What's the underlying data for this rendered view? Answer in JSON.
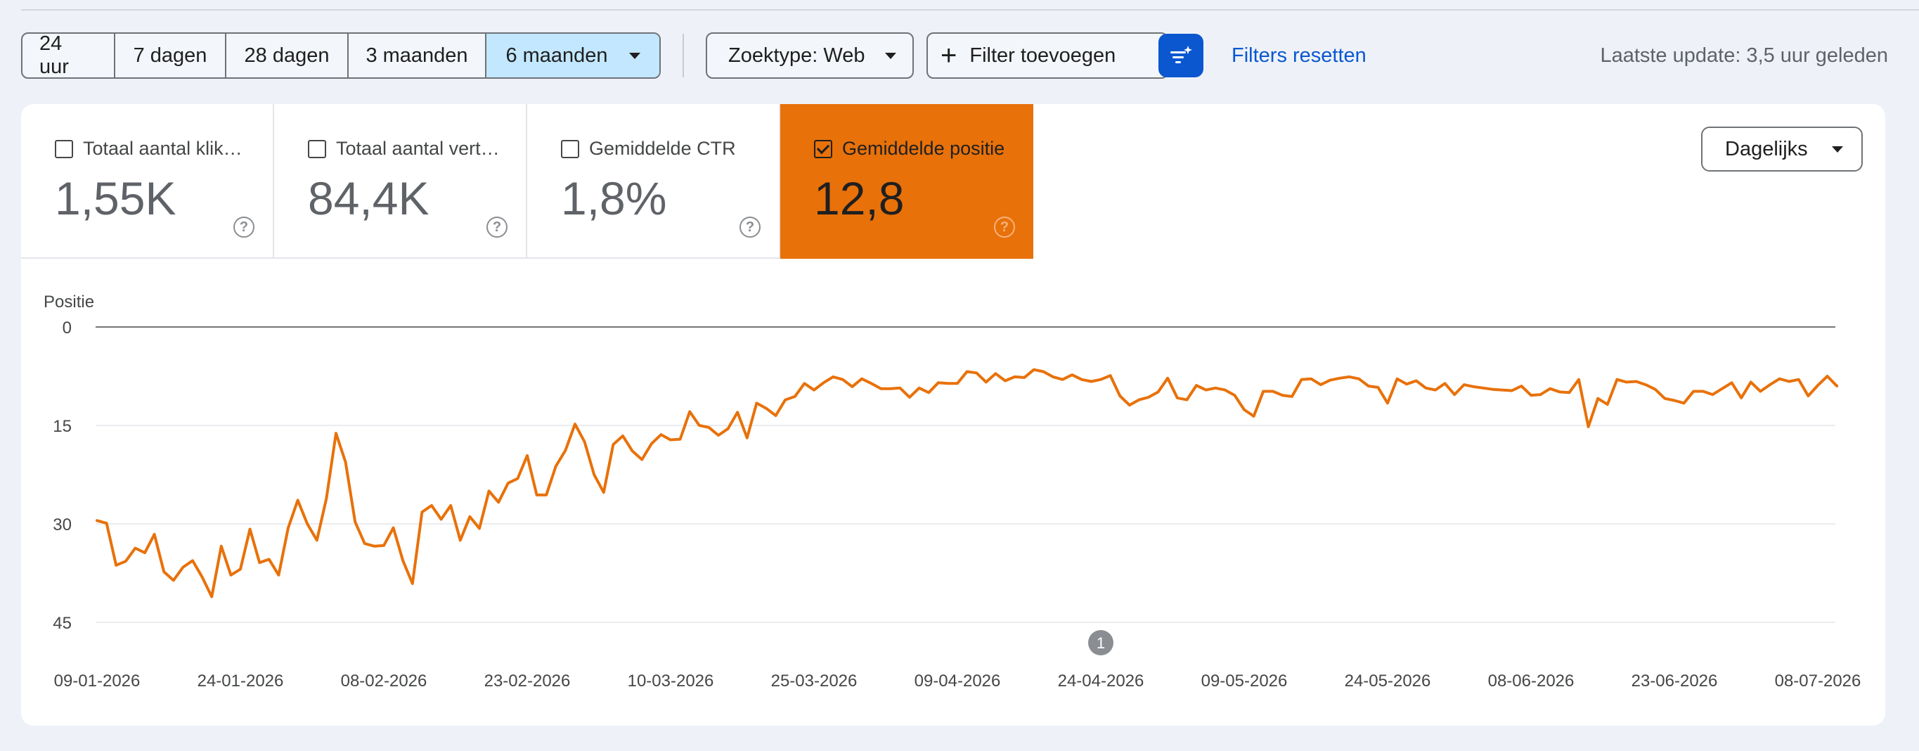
{
  "toolbar": {
    "ranges": [
      {
        "label": "24 uur",
        "active": false
      },
      {
        "label": "7 dagen",
        "active": false
      },
      {
        "label": "28 dagen",
        "active": false
      },
      {
        "label": "3 maanden",
        "active": false
      },
      {
        "label": "6 maanden",
        "active": true
      }
    ],
    "search_type": "Zoektype: Web",
    "add_filter": "Filter toevoegen",
    "reset_filters": "Filters resetten",
    "last_update": "Laatste update: 3,5 uur geleden"
  },
  "metrics": [
    {
      "label": "Totaal aantal klik…",
      "value": "1,55K",
      "checked": false
    },
    {
      "label": "Totaal aantal vert…",
      "value": "84,4K",
      "checked": false
    },
    {
      "label": "Gemiddelde CTR",
      "value": "1,8%",
      "checked": false
    },
    {
      "label": "Gemiddelde positie",
      "value": "12,8",
      "checked": true
    }
  ],
  "help_glyph": "?",
  "granularity": "Dagelijks",
  "colors": {
    "accent_orange": "#e8710a",
    "primary_blue": "#0b57d0",
    "selected_range_bg": "#c2e7ff"
  },
  "chart_data": {
    "type": "line",
    "title": "",
    "ylabel": "Positie",
    "xlabel": "",
    "y_reversed": true,
    "ylim": [
      0,
      45
    ],
    "yticks": [
      0,
      15,
      30,
      45
    ],
    "x_tick_labels": [
      "09-01-2026",
      "24-01-2026",
      "08-02-2026",
      "23-02-2026",
      "10-03-2026",
      "25-03-2026",
      "09-04-2026",
      "24-04-2026",
      "09-05-2026",
      "24-05-2026",
      "08-06-2026",
      "23-06-2026",
      "08-07-2026"
    ],
    "x_start": "2026-01-09",
    "annotations": [
      {
        "date": "2026-04-24",
        "label": "1"
      }
    ],
    "series": [
      {
        "color": "#e8710a",
        "values": [
          29.5,
          29.9,
          36.3,
          35.7,
          33.7,
          34.4,
          31.6,
          37.3,
          38.6,
          36.6,
          35.6,
          38.1,
          41.1,
          33.4,
          37.8,
          36.9,
          30.8,
          35.9,
          35.4,
          37.8,
          30.6,
          26.4,
          30.0,
          32.5,
          26.1,
          16.2,
          20.6,
          29.7,
          33.0,
          33.4,
          33.3,
          30.6,
          35.6,
          39.1,
          28.2,
          27.2,
          29.3,
          27.2,
          32.5,
          28.9,
          30.7,
          25.0,
          26.7,
          23.8,
          23.1,
          19.6,
          25.6,
          25.6,
          21.2,
          18.8,
          14.8,
          17.5,
          22.5,
          25.2,
          17.9,
          16.6,
          18.9,
          20.2,
          17.8,
          16.4,
          17.2,
          17.1,
          12.9,
          15.0,
          15.3,
          16.5,
          15.5,
          13.0,
          16.9,
          11.6,
          12.4,
          13.5,
          11.1,
          10.6,
          8.6,
          9.6,
          8.5,
          7.6,
          8.0,
          9.1,
          7.9,
          8.6,
          9.4,
          9.4,
          9.3,
          10.7,
          9.3,
          10.0,
          8.5,
          8.6,
          8.6,
          6.8,
          7.0,
          8.4,
          7.1,
          8.2,
          7.6,
          7.7,
          6.5,
          6.8,
          7.6,
          8.0,
          7.3,
          8.0,
          8.3,
          8.0,
          7.4,
          10.5,
          11.9,
          11.1,
          10.7,
          9.9,
          7.8,
          10.8,
          11.1,
          8.9,
          9.6,
          9.3,
          9.6,
          10.4,
          12.6,
          13.6,
          9.8,
          9.8,
          10.4,
          10.6,
          8.0,
          7.9,
          8.8,
          8.1,
          7.8,
          7.6,
          7.9,
          9.0,
          9.2,
          11.6,
          7.9,
          8.7,
          8.2,
          9.3,
          9.6,
          8.6,
          10.3,
          8.8,
          9.1,
          9.3,
          9.5,
          9.6,
          9.7,
          9.0,
          10.4,
          10.3,
          9.4,
          9.9,
          10.0,
          8.0,
          15.2,
          10.9,
          11.8,
          8.0,
          8.4,
          8.3,
          8.8,
          9.5,
          10.9,
          11.2,
          11.6,
          9.8,
          9.8,
          10.3,
          9.4,
          8.5,
          10.8,
          8.4,
          9.8,
          8.8,
          7.9,
          8.3,
          8.0,
          10.5,
          8.9,
          7.5,
          9.0
        ]
      }
    ]
  }
}
